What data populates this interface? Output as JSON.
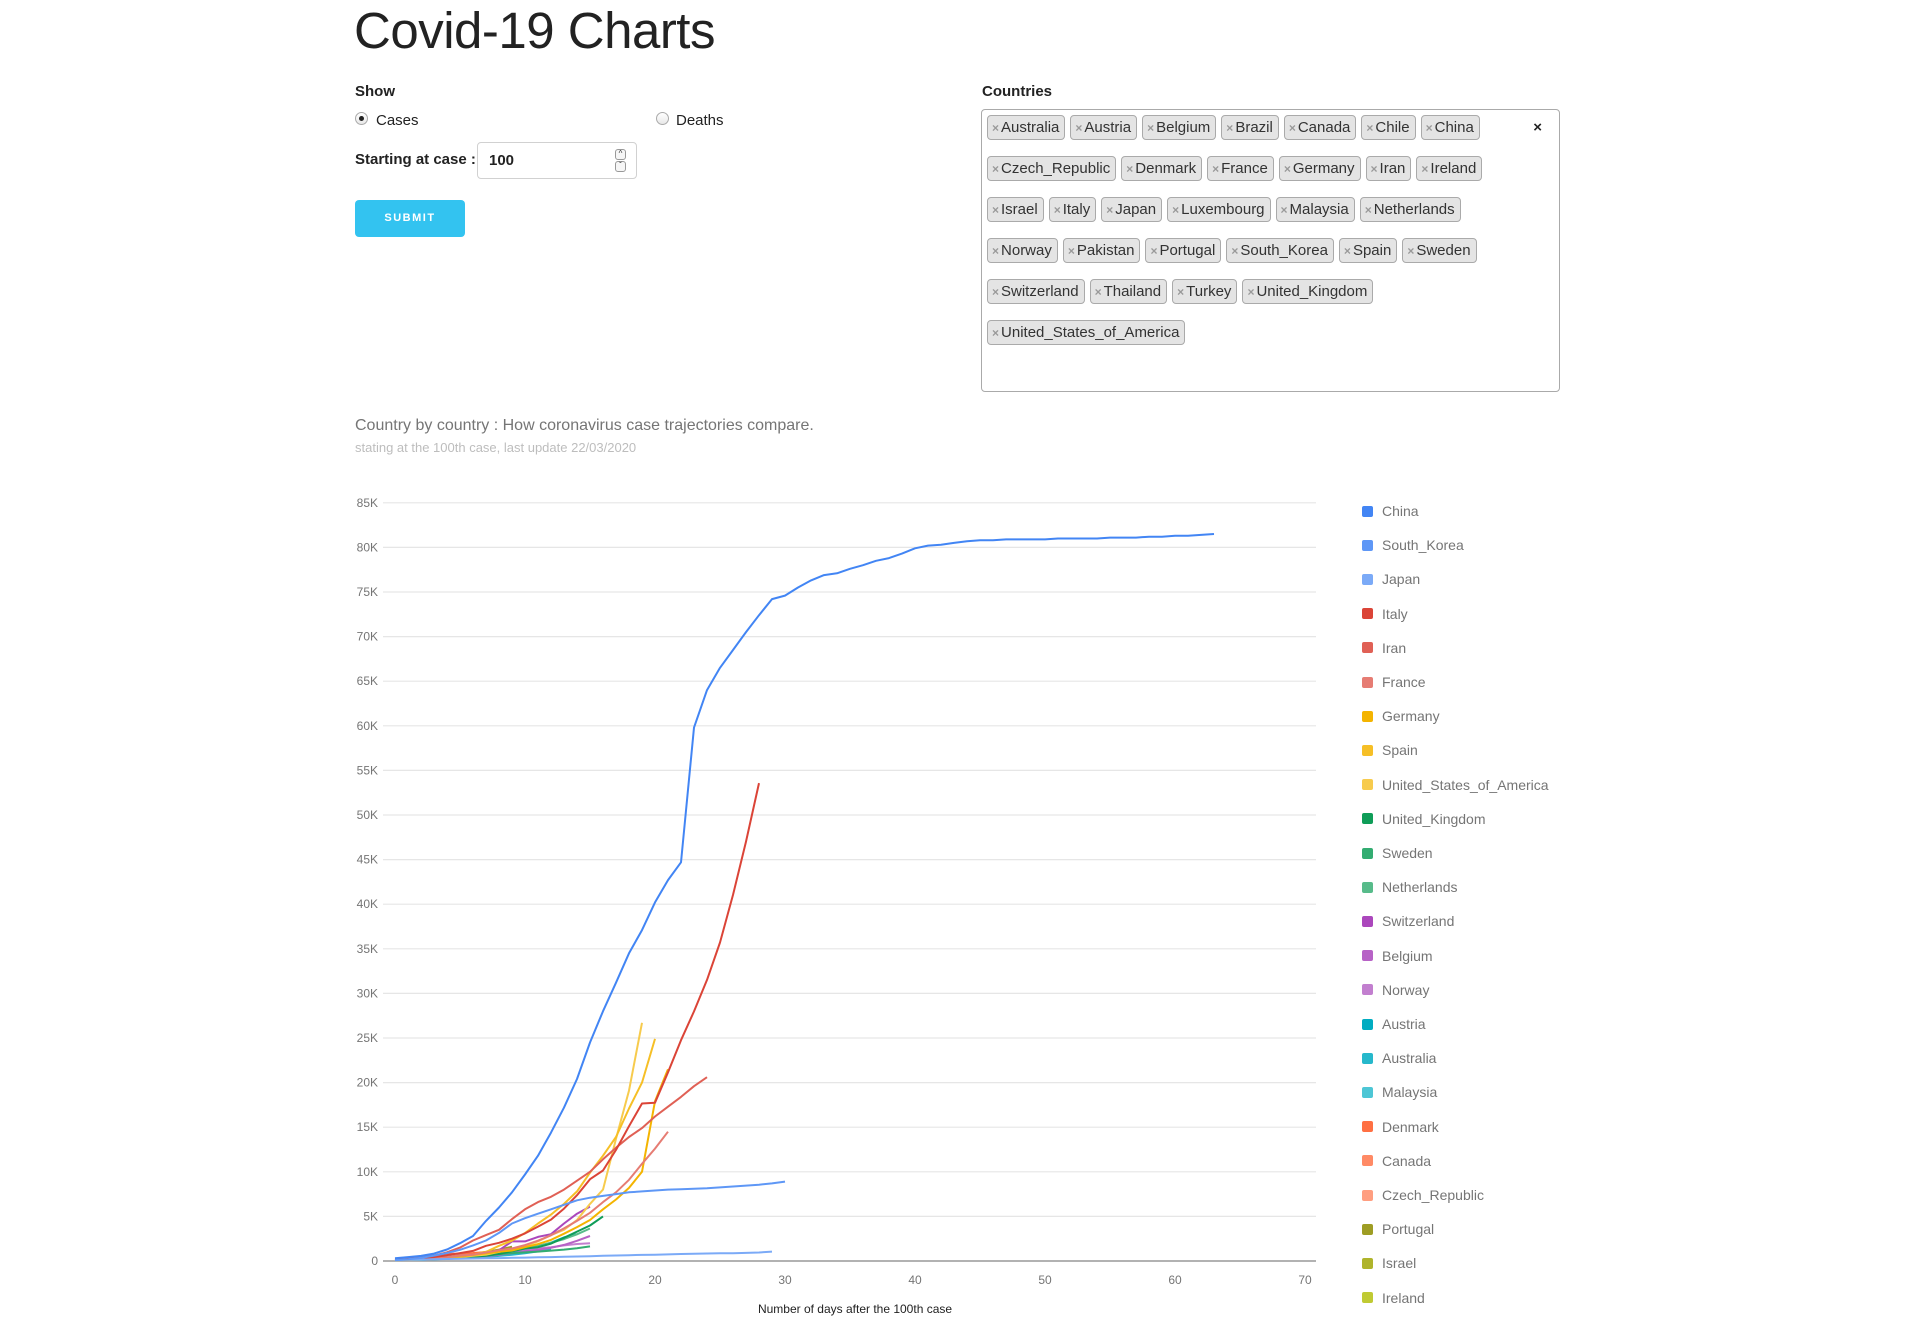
{
  "header": {
    "title": "Covid-19 Charts"
  },
  "form": {
    "show_label": "Show",
    "radio_options": [
      {
        "label": "Cases",
        "checked": true
      },
      {
        "label": "Deaths",
        "checked": false
      }
    ],
    "start_label": "Starting at case :",
    "start_value": "100",
    "submit_label": "SUBMIT",
    "countries_label": "Countries",
    "clear_all_icon": "×",
    "remove_icon": "×",
    "selected_countries": [
      "Australia",
      "Austria",
      "Belgium",
      "Brazil",
      "Canada",
      "Chile",
      "China",
      "Czech_Republic",
      "Denmark",
      "France",
      "Germany",
      "Iran",
      "Ireland",
      "Israel",
      "Italy",
      "Japan",
      "Luxembourg",
      "Malaysia",
      "Netherlands",
      "Norway",
      "Pakistan",
      "Portugal",
      "South_Korea",
      "Spain",
      "Sweden",
      "Switzerland",
      "Thailand",
      "Turkey",
      "United_Kingdom",
      "United_States_of_America"
    ]
  },
  "chart_data": {
    "type": "line",
    "title": "Country by country : How coronavirus case trajectories compare.",
    "subtitle": "stating at the 100th case, last update 22/03/2020",
    "xlabel": "Number of days after the 100th case",
    "ylabel": "",
    "xlim": [
      0,
      70
    ],
    "ylim": [
      0,
      85000
    ],
    "x_ticks": [
      0,
      10,
      20,
      30,
      40,
      50,
      60,
      70
    ],
    "y_ticks": [
      "0",
      "5K",
      "10K",
      "15K",
      "20K",
      "25K",
      "30K",
      "35K",
      "40K",
      "45K",
      "50K",
      "55K",
      "60K",
      "65K",
      "70K",
      "75K",
      "80K",
      "85K"
    ],
    "grid": true,
    "legend_position": "right",
    "series": [
      {
        "name": "China",
        "color": "#4285f4",
        "values": [
          300,
          440,
          570,
          830,
          1290,
          2000,
          2800,
          4500,
          6000,
          7700,
          9700,
          11800,
          14400,
          17200,
          20400,
          24500,
          28000,
          31200,
          34500,
          37100,
          40200,
          42700,
          44700,
          59800,
          64000,
          66500,
          68500,
          70500,
          72400,
          74200,
          74600,
          75500,
          76300,
          76900,
          77100,
          77600,
          78000,
          78500,
          78800,
          79300,
          79900,
          80200,
          80300,
          80500,
          80700,
          80800,
          80800,
          80900,
          80900,
          80900,
          80900,
          81000,
          81000,
          81000,
          81000,
          81100,
          81100,
          81100,
          81200,
          81200,
          81300,
          81300,
          81400,
          81500
        ]
      },
      {
        "name": "South_Korea",
        "color": "#5e97f6",
        "values": [
          100,
          200,
          350,
          600,
          900,
          1250,
          1750,
          2300,
          3150,
          4200,
          4800,
          5300,
          5800,
          6300,
          6800,
          7100,
          7300,
          7500,
          7700,
          7800,
          7900,
          8000,
          8050,
          8100,
          8150,
          8250,
          8350,
          8450,
          8550,
          8700,
          8900
        ]
      },
      {
        "name": "Japan",
        "color": "#7baaf7",
        "values": [
          100,
          130,
          160,
          190,
          220,
          250,
          280,
          300,
          330,
          360,
          380,
          410,
          440,
          480,
          510,
          540,
          580,
          620,
          650,
          680,
          710,
          740,
          780,
          810,
          840,
          860,
          880,
          910,
          950,
          1050
        ]
      },
      {
        "name": "Italy",
        "color": "#db4437",
        "values": [
          150,
          230,
          320,
          450,
          650,
          890,
          1130,
          1700,
          2040,
          2500,
          3090,
          3860,
          4640,
          5880,
          7380,
          9170,
          10150,
          12460,
          15110,
          17660,
          17750,
          21160,
          24750,
          27980,
          31510,
          35710,
          41040,
          47020,
          53580
        ]
      },
      {
        "name": "Iran",
        "color": "#e06055",
        "values": [
          140,
          250,
          400,
          600,
          980,
          1500,
          2300,
          2900,
          3500,
          4700,
          5800,
          6600,
          7200,
          8000,
          9000,
          10000,
          11400,
          12700,
          13900,
          14900,
          16200,
          17300,
          18400,
          19600,
          20600
        ]
      },
      {
        "name": "France",
        "color": "#e67c73",
        "values": [
          130,
          190,
          210,
          280,
          420,
          610,
          710,
          950,
          1200,
          1400,
          1780,
          2280,
          2880,
          3660,
          4500,
          5400,
          6600,
          7700,
          9100,
          10900,
          12600,
          14500
        ]
      },
      {
        "name": "Germany",
        "color": "#f4b400",
        "values": [
          130,
          160,
          200,
          250,
          350,
          480,
          670,
          850,
          1040,
          1180,
          1560,
          1900,
          2370,
          3060,
          3800,
          4600,
          5800,
          6900,
          8200,
          10000,
          17900,
          21500
        ]
      },
      {
        "name": "Spain",
        "color": "#f6bf26",
        "values": [
          120,
          165,
          230,
          290,
          370,
          590,
          680,
          1020,
          1700,
          2280,
          3140,
          4200,
          5200,
          6400,
          7800,
          9900,
          11800,
          13900,
          17100,
          20000,
          24900
        ]
      },
      {
        "name": "United_States_of_America",
        "color": "#f7cb4d",
        "values": [
          100,
          125,
          160,
          220,
          300,
          440,
          580,
          720,
          1020,
          1300,
          1700,
          2200,
          2900,
          3500,
          4600,
          6400,
          8000,
          13700,
          19100,
          26700
        ]
      },
      {
        "name": "United_Kingdom",
        "color": "#0f9d58",
        "values": [
          110,
          160,
          210,
          270,
          320,
          380,
          460,
          590,
          800,
          1100,
          1400,
          1550,
          1950,
          2600,
          3300,
          3980,
          5000
        ]
      },
      {
        "name": "Sweden",
        "color": "#33ac71",
        "values": [
          110,
          160,
          200,
          250,
          330,
          360,
          460,
          620,
          770,
          890,
          960,
          1050,
          1170,
          1280,
          1420,
          1640
        ]
      },
      {
        "name": "Netherlands",
        "color": "#57bb8a",
        "values": [
          130,
          180,
          260,
          320,
          380,
          500,
          610,
          800,
          960,
          1140,
          1400,
          1700,
          2050,
          2450,
          2990,
          3640
        ]
      },
      {
        "name": "Switzerland",
        "color": "#ab47bc",
        "values": [
          110,
          150,
          210,
          260,
          340,
          480,
          640,
          860,
          1200,
          2200,
          2200,
          2700,
          3000,
          4200,
          5300,
          6100
        ]
      },
      {
        "name": "Belgium",
        "color": "#b762c6",
        "values": [
          110,
          170,
          200,
          240,
          270,
          310,
          400,
          560,
          690,
          890,
          1090,
          1240,
          1480,
          1800,
          2260,
          2800
        ]
      },
      {
        "name": "Norway",
        "color": "#c27fcf",
        "values": [
          110,
          140,
          190,
          280,
          400,
          620,
          700,
          890,
          1090,
          1220,
          1260,
          1420,
          1550,
          1750,
          1910,
          1990
        ]
      },
      {
        "name": "Austria",
        "color": "#00acc1",
        "values": [
          100,
          130,
          180,
          250,
          300,
          360,
          500,
          650,
          800,
          1050,
          1350,
          1650,
          2050,
          2650,
          3000
        ]
      },
      {
        "name": "Australia",
        "color": "#26b8cb",
        "values": [
          110,
          130,
          150,
          200,
          250,
          300,
          380,
          450,
          570,
          710,
          870,
          1080,
          1320
        ]
      },
      {
        "name": "Malaysia",
        "color": "#4dc6d5",
        "values": [
          110,
          130,
          150,
          200,
          240,
          430,
          560,
          670,
          790,
          900,
          1030,
          1180,
          1300
        ]
      },
      {
        "name": "Denmark",
        "color": "#ff7043",
        "values": [
          150,
          260,
          440,
          620,
          800,
          830,
          900,
          1000,
          1050,
          1150,
          1250,
          1340,
          1400
        ]
      },
      {
        "name": "Canada",
        "color": "#ff8a65",
        "values": [
          110,
          140,
          180,
          250,
          320,
          420,
          560,
          690,
          850,
          970,
          1090,
          1380
        ]
      },
      {
        "name": "Czech_Republic",
        "color": "#ff9e80",
        "values": [
          110,
          140,
          190,
          300,
          380,
          460,
          520,
          700,
          830,
          990,
          1120,
          1240
        ]
      },
      {
        "name": "Portugal",
        "color": "#9e9d24",
        "values": [
          110,
          170,
          240,
          330,
          450,
          640,
          780,
          1020,
          1280,
          1600
        ]
      },
      {
        "name": "Israel",
        "color": "#afb42b",
        "values": [
          110,
          130,
          200,
          250,
          300,
          430,
          530,
          700,
          900
        ]
      },
      {
        "name": "Ireland",
        "color": "#c0ca33",
        "values": [
          130,
          170,
          220,
          290,
          370,
          560,
          680,
          790,
          910
        ]
      }
    ]
  }
}
